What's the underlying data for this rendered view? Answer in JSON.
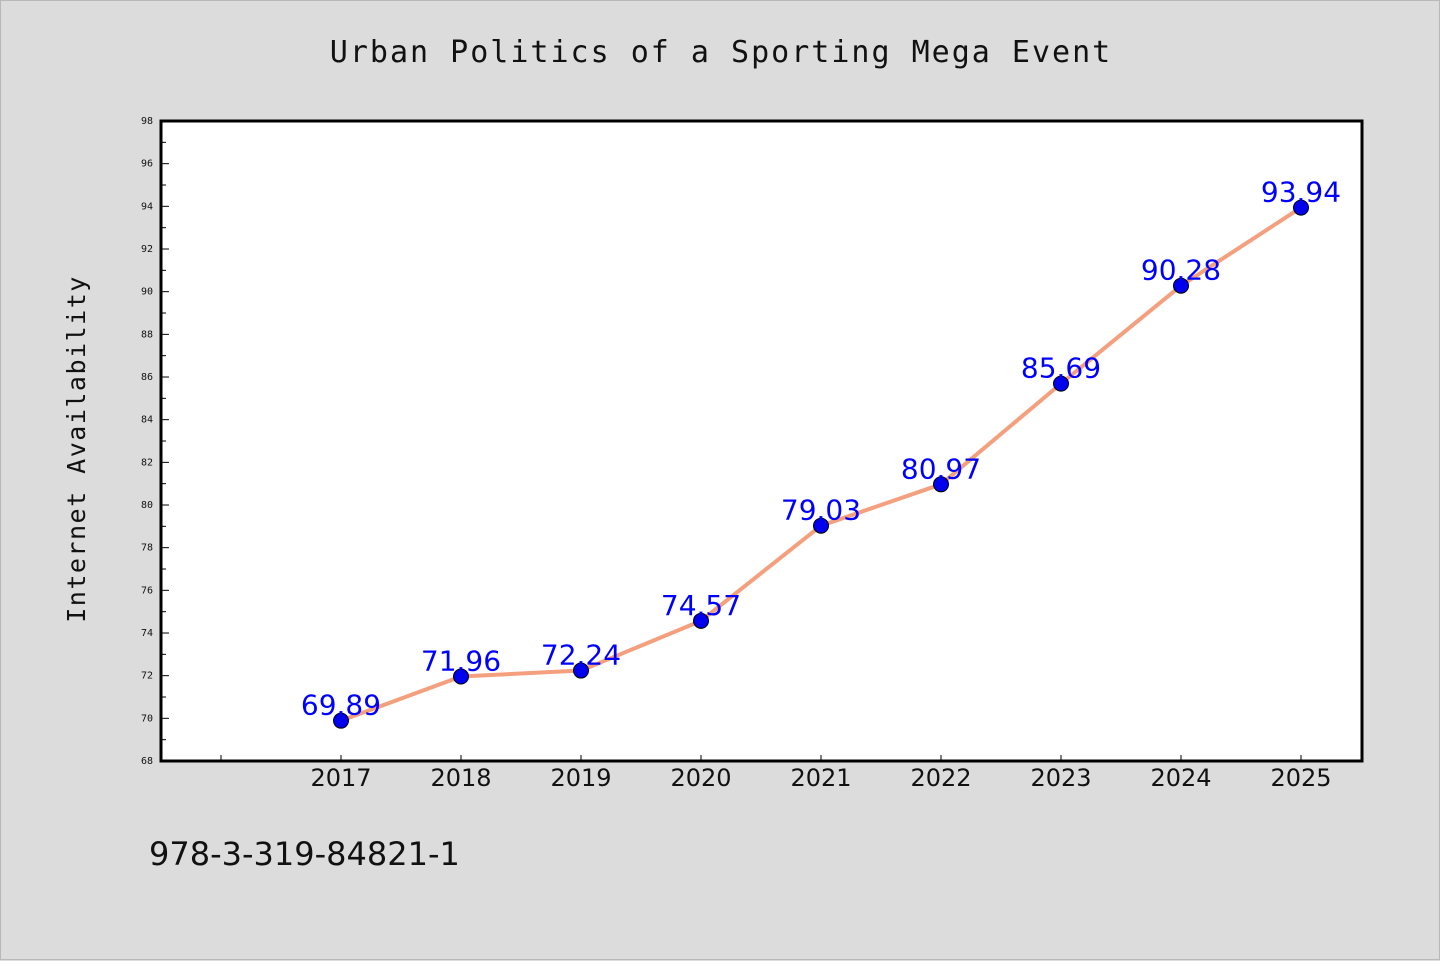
{
  "chart_data": {
    "type": "line",
    "title": "Urban Politics of a Sporting Mega Event",
    "xlabel": "",
    "ylabel": "Internet Availability",
    "categories": [
      "2017",
      "2018",
      "2019",
      "2020",
      "2021",
      "2022",
      "2023",
      "2024",
      "2025"
    ],
    "series": [
      {
        "values": [
          69.89,
          71.96,
          72.24,
          74.57,
          79.03,
          80.97,
          85.69,
          90.28,
          93.94
        ]
      }
    ],
    "data_labels": [
      "69.89",
      "71.96",
      "72.24",
      "74.57",
      "79.03",
      "80.97",
      "85.69",
      "90.28",
      "93.94"
    ],
    "ylim": [
      68,
      98
    ],
    "yticks": [
      "68",
      "70",
      "72",
      "74",
      "76",
      "78",
      "80",
      "82",
      "84",
      "86",
      "88",
      "90",
      "92",
      "94",
      "96",
      "98"
    ],
    "grid": false,
    "colors": {
      "line": "#f4a07e",
      "marker": "#0000ee",
      "label": "#0000ff",
      "background": "#dcdcdc",
      "plot": "#ffffff"
    }
  },
  "footer": {
    "isbn": "978-3-319-84821-1"
  }
}
